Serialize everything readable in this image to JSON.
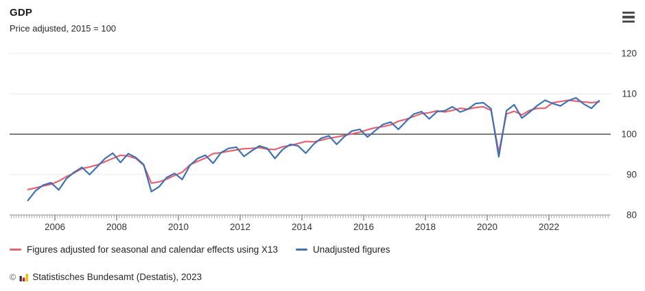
{
  "header": {
    "title": "GDP",
    "subtitle": "Price adjusted, 2015 = 100"
  },
  "menu": {
    "icon": "hamburger-icon"
  },
  "colors": {
    "adjusted_line": "#e8616f",
    "unadjusted_line": "#3e6fb5",
    "grid": "#e7e7e7",
    "baseline": "#2f2f2f",
    "axis": "#8c8c8c",
    "tick": "#9a9a9a",
    "label_text": "#333333"
  },
  "chart_data": {
    "type": "line",
    "title": "GDP",
    "subtitle": "Price adjusted, 2015 = 100",
    "frequency": "quarterly",
    "x_start": 2005.125,
    "x_step": 0.25,
    "x_tick_years": [
      2006,
      2008,
      2010,
      2012,
      2014,
      2016,
      2018,
      2020,
      2022
    ],
    "y_ticks": [
      120,
      110,
      100,
      90,
      80
    ],
    "ylim": [
      80,
      120
    ],
    "baseline_value": 100,
    "grid": true,
    "legend_position": "bottom",
    "series": [
      {
        "name": "Figures adjusted for seasonal and calendar effects using X13",
        "color": "#e8616f",
        "values": [
          86.3,
          86.7,
          87.2,
          87.6,
          88.4,
          89.5,
          90.4,
          91.5,
          91.9,
          92.4,
          93.2,
          94.0,
          94.8,
          94.6,
          94.0,
          92.3,
          87.9,
          88.2,
          88.9,
          89.8,
          90.6,
          92.4,
          93.3,
          94.1,
          95.2,
          95.4,
          95.8,
          96.1,
          96.4,
          96.5,
          96.7,
          96.3,
          96.2,
          96.9,
          97.2,
          97.7,
          98.2,
          98.1,
          98.5,
          99.0,
          99.3,
          99.7,
          100.1,
          100.5,
          101.1,
          101.6,
          101.9,
          102.3,
          103.2,
          103.7,
          104.4,
          105.1,
          105.3,
          105.8,
          105.5,
          105.9,
          106.4,
          106.2,
          106.6,
          106.8,
          105.9,
          95.5,
          105.0,
          105.7,
          104.8,
          105.9,
          106.4,
          106.4,
          107.8,
          108.1,
          108.4,
          108.2,
          108.0,
          107.8,
          108.0
        ]
      },
      {
        "name": "Unadjusted figures",
        "color": "#3e6fb5",
        "values": [
          83.6,
          86.0,
          87.4,
          88.0,
          86.2,
          89.0,
          90.6,
          91.8,
          90.0,
          92.0,
          94.0,
          95.3,
          93.0,
          95.2,
          94.2,
          92.5,
          85.8,
          87.0,
          89.3,
          90.3,
          88.8,
          92.3,
          94.0,
          94.8,
          92.8,
          95.4,
          96.5,
          96.8,
          94.5,
          95.9,
          97.1,
          96.5,
          94.0,
          96.2,
          97.5,
          97.1,
          95.3,
          97.5,
          99.0,
          99.6,
          97.5,
          99.4,
          100.8,
          101.2,
          99.3,
          100.9,
          102.4,
          103.0,
          101.2,
          103.2,
          105.0,
          105.6,
          103.8,
          105.6,
          105.8,
          106.8,
          105.5,
          106.2,
          107.6,
          107.8,
          106.3,
          94.4,
          105.8,
          107.3,
          104.0,
          105.5,
          107.1,
          108.4,
          107.6,
          107.0,
          108.3,
          109.0,
          107.5,
          106.4,
          108.3
        ]
      }
    ]
  },
  "legend": {
    "items": [
      {
        "label": "Figures adjusted for seasonal and calendar effects using X13",
        "color": "#e8616f"
      },
      {
        "label": "Unadjusted figures",
        "color": "#3e6fb5"
      }
    ]
  },
  "footer": {
    "copyright": "©",
    "logo": "destatis-bars-icon",
    "logo_colors": {
      "bar1": "#3c3c3b",
      "bar2": "#d2232a",
      "bar3": "#f5bd00"
    },
    "source": "Statistisches Bundesamt (Destatis), 2023"
  }
}
